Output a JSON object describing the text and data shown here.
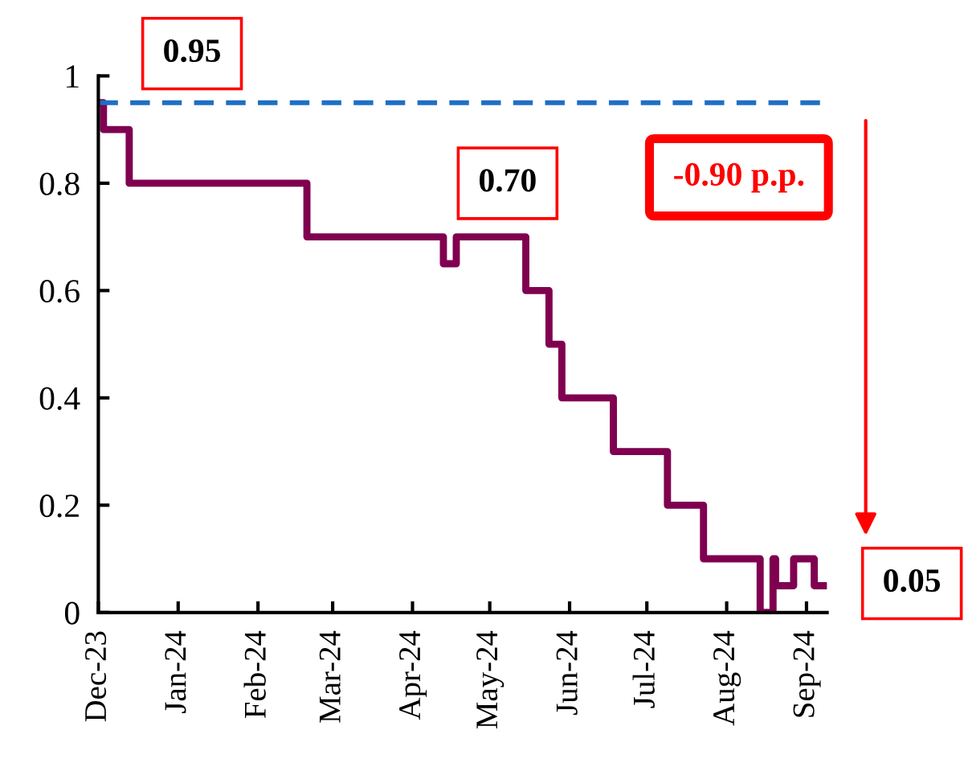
{
  "chart_data": {
    "type": "step",
    "x": [
      "2023-12-01",
      "2023-12-03",
      "2023-12-13",
      "2024-02-20",
      "2024-04-13",
      "2024-04-18",
      "2024-05-15",
      "2024-05-24",
      "2024-05-29",
      "2024-06-18",
      "2024-07-09",
      "2024-07-23",
      "2024-08-14",
      "2024-08-19",
      "2024-08-20",
      "2024-08-27",
      "2024-09-04",
      "2024-09-09"
    ],
    "series": [
      {
        "color": "#800050",
        "values": [
          0.95,
          0.9,
          0.8,
          0.7,
          0.65,
          0.7,
          0.6,
          0.5,
          0.4,
          0.3,
          0.2,
          0.1,
          0,
          0.1,
          0.05,
          0.1,
          0.05,
          0.05
        ]
      }
    ],
    "xlim": [
      "2023-12-01",
      "2024-09-09"
    ],
    "xticks": [
      {
        "value": "2023-12-01",
        "label": "Dec-23"
      },
      {
        "value": "2024-01-01",
        "label": "Jan-24"
      },
      {
        "value": "2024-02-01",
        "label": "Feb-24"
      },
      {
        "value": "2024-03-01",
        "label": "Mar-24"
      },
      {
        "value": "2024-04-01",
        "label": "Apr-24"
      },
      {
        "value": "2024-05-01",
        "label": "May-24"
      },
      {
        "value": "2024-06-01",
        "label": "Jun-24"
      },
      {
        "value": "2024-07-01",
        "label": "Jul-24"
      },
      {
        "value": "2024-08-01",
        "label": "Aug-24"
      },
      {
        "value": "2024-09-01",
        "label": "Sep-24"
      }
    ],
    "ylim": [
      0,
      1
    ],
    "yticks": [
      0,
      0.2,
      0.4,
      0.6,
      0.8,
      1
    ],
    "ref_lines": [
      {
        "axis": "y",
        "value": 0.95,
        "color": "#1f6fc5",
        "line_style": "dashed"
      }
    ],
    "annotations": [
      {
        "text": "0.95",
        "x": "2023-12-01",
        "y": 0.95
      },
      {
        "text": "0.70",
        "x": "2024-05-01",
        "y": 0.7
      },
      "-0.90 p.p.",
      {
        "text": "0.05",
        "x": "2024-09-09",
        "y": 0.05
      }
    ],
    "grid": false,
    "marker": "none",
    "line_style": "solid"
  }
}
